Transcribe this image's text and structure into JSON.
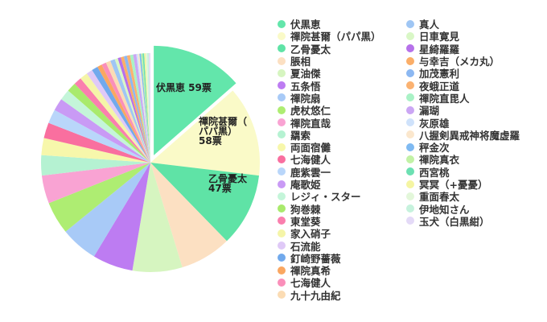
{
  "page": {
    "background": "#ffffff"
  },
  "chart_data": {
    "type": "pie",
    "title": "",
    "start_angle_deg": 0,
    "direction": "clockwise",
    "legend_position": "right",
    "legend_column_split": 23,
    "value_unit": "票",
    "total_votes_estimated": 435,
    "slices": [
      {
        "label": "伏黒恵",
        "value": 59,
        "estimated": false,
        "color": "#63e6ab",
        "exploded": true,
        "data_label_lines": [
          "伏黒恵 59票"
        ]
      },
      {
        "label": "禪院甚爾（パパ黒）",
        "value": 58,
        "estimated": false,
        "color": "#fafac8",
        "exploded": false,
        "data_label_lines": [
          "禪院甚爾（",
          "パパ黒）",
          "58票"
        ]
      },
      {
        "label": "乙骨憂太",
        "value": 47,
        "estimated": false,
        "color": "#5fe3a6",
        "exploded": false,
        "data_label_lines": [
          "乙骨憂太",
          "47票"
        ]
      },
      {
        "label": "脹相",
        "value": 33,
        "estimated": true,
        "color": "#fce0c2",
        "exploded": false
      },
      {
        "label": "夏油傑",
        "value": 32,
        "estimated": true,
        "color": "#d6f5c0",
        "exploded": false
      },
      {
        "label": "五条悟",
        "value": 26,
        "estimated": true,
        "color": "#bd7cf2",
        "exploded": false
      },
      {
        "label": "禪院扇",
        "value": 24,
        "estimated": true,
        "color": "#a8caf7",
        "exploded": false
      },
      {
        "label": "虎杖悠仁",
        "value": 21,
        "estimated": true,
        "color": "#aeed72",
        "exploded": false
      },
      {
        "label": "禪院直哉",
        "value": 18,
        "estimated": true,
        "color": "#f9a3d3",
        "exploded": false
      },
      {
        "label": "羂索",
        "value": 13,
        "estimated": true,
        "color": "#b5f2d2",
        "exploded": false
      },
      {
        "label": "両面宿儺",
        "value": 11,
        "estimated": true,
        "color": "#f7f7ab",
        "exploded": false
      },
      {
        "label": "七海健人",
        "value": 10,
        "estimated": true,
        "color": "#f96f9f",
        "exploded": false
      },
      {
        "label": "鹿紫雲一",
        "value": 9,
        "estimated": true,
        "color": "#b9d6fa",
        "exploded": false
      },
      {
        "label": "庵歌姫",
        "value": 8,
        "estimated": true,
        "color": "#c99af5",
        "exploded": false
      },
      {
        "label": "レジィ・スター",
        "value": 7,
        "estimated": true,
        "color": "#c4f5d9",
        "exploded": false
      },
      {
        "label": "狗巻棘",
        "value": 6,
        "estimated": true,
        "color": "#a9ea6c",
        "exploded": false
      },
      {
        "label": "東堂葵",
        "value": 5,
        "estimated": true,
        "color": "#fa7fae",
        "exploded": false
      },
      {
        "label": "家入硝子",
        "value": 5,
        "estimated": true,
        "color": "#f5f5a8",
        "exploded": false
      },
      {
        "label": "石流能",
        "value": 4,
        "estimated": true,
        "color": "#dfc9f7",
        "exploded": false
      },
      {
        "label": "釘崎野薔薇",
        "value": 4,
        "estimated": true,
        "color": "#71a9ec",
        "exploded": false
      },
      {
        "label": "禪院真希",
        "value": 3,
        "estimated": true,
        "color": "#faa761",
        "exploded": false
      },
      {
        "label": "七海健人",
        "value": 3,
        "estimated": true,
        "color": "#fa8fba",
        "exploded": false
      },
      {
        "label": "九十九由紀",
        "value": 3,
        "estimated": true,
        "color": "#fbdcb4",
        "exploded": false
      },
      {
        "label": "真人",
        "value": 3,
        "estimated": true,
        "color": "#9fc6f4",
        "exploded": false
      },
      {
        "label": "日車寛見",
        "value": 2,
        "estimated": true,
        "color": "#d9f7c6",
        "exploded": false
      },
      {
        "label": "星綺羅羅",
        "value": 2,
        "estimated": true,
        "color": "#b671ea",
        "exploded": false
      },
      {
        "label": "与幸吉（メカ丸）",
        "value": 2,
        "estimated": true,
        "color": "#fbae68",
        "exploded": false
      },
      {
        "label": "加茂憲利",
        "value": 2,
        "estimated": true,
        "color": "#8cb8f2",
        "exploded": false
      },
      {
        "label": "夜蛾正道",
        "value": 2,
        "estimated": true,
        "color": "#fbb271",
        "exploded": false
      },
      {
        "label": "禪院直毘人",
        "value": 2,
        "estimated": true,
        "color": "#a9f2c6",
        "exploded": false
      },
      {
        "label": "漏瑚",
        "value": 2,
        "estimated": true,
        "color": "#cba6f4",
        "exploded": false
      },
      {
        "label": "灰原雄",
        "value": 1,
        "estimated": true,
        "color": "#cfe2fb",
        "exploded": false
      },
      {
        "label": "八握剣異戒神将魔虚羅",
        "value": 1,
        "estimated": true,
        "color": "#fbe7cd",
        "exploded": false
      },
      {
        "label": "秤金次",
        "value": 1,
        "estimated": true,
        "color": "#7fbaf2",
        "exploded": false
      },
      {
        "label": "禪院真衣",
        "value": 1,
        "estimated": true,
        "color": "#c2f2a6",
        "exploded": false
      },
      {
        "label": "西宮桃",
        "value": 1,
        "estimated": true,
        "color": "#6ce0b2",
        "exploded": false
      },
      {
        "label": "冥冥（+憂憂）",
        "value": 1,
        "estimated": true,
        "color": "#f5f5a2",
        "exploded": false
      },
      {
        "label": "重面春太",
        "value": 1,
        "estimated": true,
        "color": "#e3f7da",
        "exploded": false
      },
      {
        "label": "伊地知さん",
        "value": 1,
        "estimated": true,
        "color": "#c6f2dd",
        "exploded": false
      },
      {
        "label": "玉犬（白黒紺）",
        "value": 1,
        "estimated": true,
        "color": "#e4daf7",
        "exploded": false
      }
    ]
  }
}
